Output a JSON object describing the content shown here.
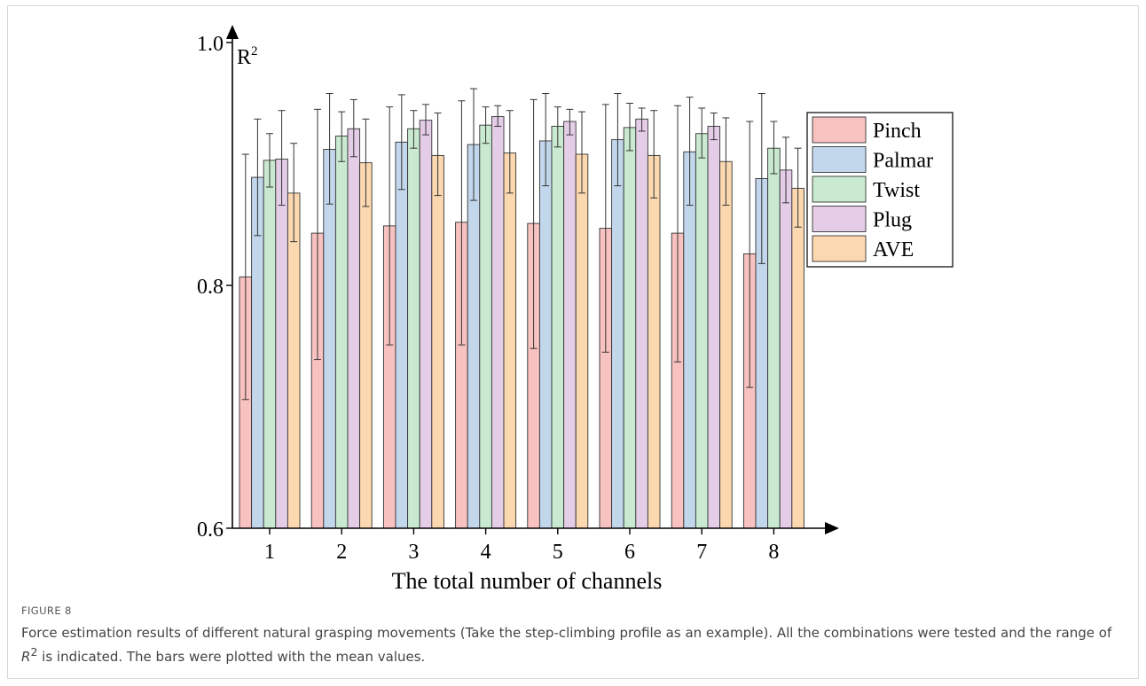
{
  "figure": {
    "label": "FIGURE 8",
    "caption_before": "Force estimation results of different natural grasping movements (Take the step-climbing profile as an example). All the combinations were tested and the range of ",
    "caption_symbol": "R",
    "caption_symbol_sup": "2",
    "caption_after": " is indicated. The bars were plotted with the mean values."
  },
  "chart_data": {
    "type": "bar",
    "xlabel": "The total number of channels",
    "ylabel": "R",
    "ylabel_sup": "2",
    "categories": [
      "1",
      "2",
      "3",
      "4",
      "5",
      "6",
      "7",
      "8"
    ],
    "ylim": [
      0.6,
      1.0
    ],
    "yticks": [
      {
        "value": 0.6,
        "label": "0.6"
      },
      {
        "value": 0.8,
        "label": "0.8"
      },
      {
        "value": 1.0,
        "label": "1.0"
      }
    ],
    "grid": false,
    "legend_position": "right",
    "series": [
      {
        "name": "Pinch",
        "color": "#f8c2c0",
        "values": [
          0.807,
          0.843,
          0.849,
          0.852,
          0.851,
          0.847,
          0.843,
          0.826
        ],
        "err_low": [
          0.706,
          0.739,
          0.751,
          0.751,
          0.748,
          0.745,
          0.737,
          0.716
        ],
        "err_high": [
          0.908,
          0.945,
          0.947,
          0.952,
          0.953,
          0.949,
          0.948,
          0.935
        ]
      },
      {
        "name": "Palmar",
        "color": "#c2d7ec",
        "values": [
          0.889,
          0.912,
          0.918,
          0.916,
          0.919,
          0.92,
          0.91,
          0.888
        ],
        "err_low": [
          0.841,
          0.867,
          0.879,
          0.87,
          0.882,
          0.882,
          0.866,
          0.818
        ],
        "err_high": [
          0.937,
          0.958,
          0.957,
          0.962,
          0.958,
          0.958,
          0.955,
          0.958
        ]
      },
      {
        "name": "Twist",
        "color": "#c9ead1",
        "values": [
          0.903,
          0.923,
          0.929,
          0.932,
          0.931,
          0.93,
          0.925,
          0.913
        ],
        "err_low": [
          0.881,
          0.902,
          0.913,
          0.917,
          0.914,
          0.911,
          0.905,
          0.892
        ],
        "err_high": [
          0.925,
          0.943,
          0.944,
          0.947,
          0.947,
          0.95,
          0.946,
          0.935
        ]
      },
      {
        "name": "Plug",
        "color": "#e5cde8",
        "values": [
          0.904,
          0.929,
          0.936,
          0.939,
          0.935,
          0.937,
          0.931,
          0.895
        ],
        "err_low": [
          0.866,
          0.906,
          0.924,
          0.931,
          0.924,
          0.927,
          0.92,
          0.868
        ],
        "err_high": [
          0.944,
          0.953,
          0.949,
          0.948,
          0.945,
          0.946,
          0.942,
          0.922
        ]
      },
      {
        "name": "AVE",
        "color": "#fcd8b0",
        "values": [
          0.876,
          0.901,
          0.907,
          0.909,
          0.908,
          0.907,
          0.902,
          0.88
        ],
        "err_low": [
          0.836,
          0.865,
          0.874,
          0.876,
          0.876,
          0.872,
          0.866,
          0.848
        ],
        "err_high": [
          0.917,
          0.937,
          0.942,
          0.944,
          0.943,
          0.944,
          0.938,
          0.913
        ]
      }
    ]
  }
}
